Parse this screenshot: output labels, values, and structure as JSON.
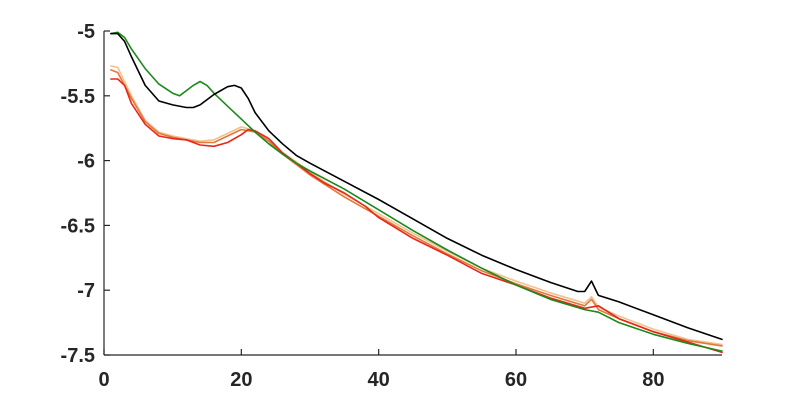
{
  "chart_data": {
    "type": "line",
    "title": "",
    "xlabel": "",
    "ylabel": "",
    "xlim": [
      0,
      90
    ],
    "ylim": [
      -7.5,
      -5
    ],
    "grid": false,
    "xticks": [
      {
        "value": 0,
        "label": "0"
      },
      {
        "value": 20,
        "label": "20"
      },
      {
        "value": 40,
        "label": "40"
      },
      {
        "value": 60,
        "label": "60"
      },
      {
        "value": 80,
        "label": "80"
      }
    ],
    "yticks": [
      {
        "value": -5,
        "label": "-5"
      },
      {
        "value": -5.5,
        "label": "-5.5"
      },
      {
        "value": -6,
        "label": "-6"
      },
      {
        "value": -6.5,
        "label": "-6.5"
      },
      {
        "value": -7,
        "label": "-7"
      },
      {
        "value": -7.5,
        "label": "-7.5"
      }
    ],
    "series": [
      {
        "color": "#f5c08f",
        "x": [
          1,
          2,
          4,
          6,
          8,
          10,
          12,
          14,
          16,
          18,
          20,
          22,
          24,
          26,
          28,
          30,
          35,
          40,
          45,
          50,
          55,
          60,
          65,
          70,
          71,
          72,
          75,
          80,
          85,
          90
        ],
        "y": [
          -5.27,
          -5.28,
          -5.5,
          -5.69,
          -5.78,
          -5.81,
          -5.83,
          -5.85,
          -5.84,
          -5.79,
          -5.74,
          -5.77,
          -5.84,
          -5.94,
          -6.01,
          -6.09,
          -6.26,
          -6.41,
          -6.56,
          -6.7,
          -6.83,
          -6.93,
          -7.02,
          -7.1,
          -7.05,
          -7.13,
          -7.2,
          -7.3,
          -7.38,
          -7.42
        ]
      },
      {
        "color": "#e07a3a",
        "x": [
          1,
          2,
          4,
          6,
          8,
          10,
          12,
          14,
          16,
          18,
          20,
          22,
          24,
          26,
          28,
          30,
          35,
          40,
          45,
          50,
          55,
          60,
          65,
          70,
          71,
          72,
          75,
          80,
          85,
          90
        ],
        "y": [
          -5.3,
          -5.32,
          -5.52,
          -5.7,
          -5.79,
          -5.82,
          -5.84,
          -5.86,
          -5.86,
          -5.81,
          -5.76,
          -5.78,
          -5.85,
          -5.95,
          -6.03,
          -6.11,
          -6.28,
          -6.43,
          -6.58,
          -6.72,
          -6.85,
          -6.95,
          -7.04,
          -7.12,
          -7.07,
          -7.15,
          -7.22,
          -7.32,
          -7.39,
          -7.43
        ]
      },
      {
        "color": "#e8261a",
        "x": [
          1,
          2,
          3,
          4,
          6,
          8,
          10,
          12,
          14,
          16,
          18,
          20,
          21,
          22,
          24,
          26,
          28,
          30,
          32,
          35,
          38,
          40,
          45,
          50,
          55,
          60,
          65,
          70,
          72,
          75,
          80,
          85,
          90
        ],
        "y": [
          -5.37,
          -5.37,
          -5.42,
          -5.56,
          -5.72,
          -5.81,
          -5.83,
          -5.84,
          -5.88,
          -5.89,
          -5.86,
          -5.8,
          -5.76,
          -5.77,
          -5.83,
          -5.94,
          -6.02,
          -6.1,
          -6.17,
          -6.25,
          -6.35,
          -6.44,
          -6.6,
          -6.73,
          -6.87,
          -6.96,
          -7.06,
          -7.14,
          -7.12,
          -7.22,
          -7.32,
          -7.4,
          -7.48
        ]
      },
      {
        "color": "#1a8a1a",
        "x": [
          1,
          2,
          3,
          4,
          6,
          8,
          10,
          11,
          12,
          13,
          14,
          15,
          16,
          18,
          20,
          22,
          24,
          26,
          28,
          30,
          35,
          40,
          45,
          50,
          55,
          60,
          65,
          70,
          72,
          75,
          80,
          85,
          90
        ],
        "y": [
          -5.02,
          -5.01,
          -5.05,
          -5.14,
          -5.29,
          -5.41,
          -5.48,
          -5.5,
          -5.46,
          -5.42,
          -5.39,
          -5.42,
          -5.48,
          -5.58,
          -5.68,
          -5.78,
          -5.87,
          -5.95,
          -6.02,
          -6.08,
          -6.22,
          -6.38,
          -6.54,
          -6.69,
          -6.83,
          -6.96,
          -7.07,
          -7.15,
          -7.17,
          -7.25,
          -7.34,
          -7.41,
          -7.47
        ]
      },
      {
        "color": "#000000",
        "x": [
          1,
          2,
          3,
          4,
          6,
          8,
          10,
          12,
          13,
          14,
          16,
          18,
          19,
          20,
          21,
          22,
          24,
          26,
          28,
          30,
          35,
          40,
          45,
          50,
          55,
          60,
          65,
          69,
          70,
          71,
          72,
          75,
          80,
          85,
          90
        ],
        "y": [
          -5.02,
          -5.02,
          -5.08,
          -5.2,
          -5.42,
          -5.54,
          -5.57,
          -5.59,
          -5.59,
          -5.57,
          -5.49,
          -5.43,
          -5.42,
          -5.44,
          -5.52,
          -5.63,
          -5.77,
          -5.87,
          -5.96,
          -6.02,
          -6.16,
          -6.3,
          -6.45,
          -6.6,
          -6.73,
          -6.84,
          -6.94,
          -7.01,
          -7.01,
          -6.93,
          -7.04,
          -7.09,
          -7.19,
          -7.29,
          -7.38
        ]
      }
    ]
  }
}
